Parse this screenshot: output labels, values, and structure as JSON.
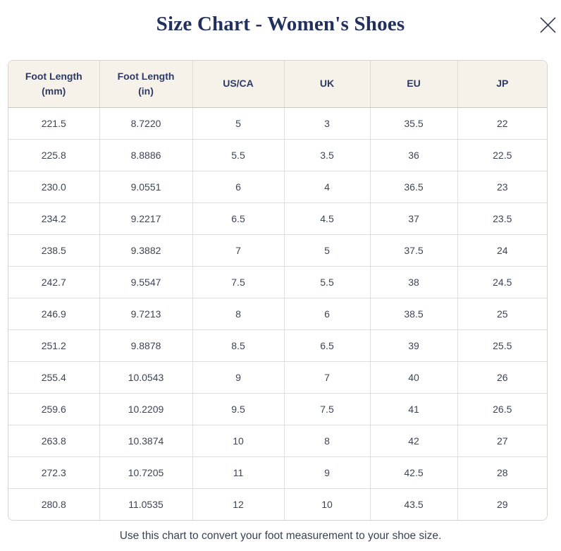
{
  "modal": {
    "title": "Size Chart - Women's Shoes",
    "footer_note": "Use this chart to convert your foot measurement to your shoe size."
  },
  "icons": {
    "close_icon": "✕"
  },
  "colors": {
    "title_text": "#22305e",
    "header_bg": "#f7f2e9",
    "header_text": "#2d3a66",
    "cell_text": "#3d4455",
    "border": "#dedede",
    "close_icon": "#3a4158"
  },
  "table": {
    "headers": [
      "Foot Length\n(mm)",
      "Foot Length\n(in)",
      "US/CA",
      "UK",
      "EU",
      "JP"
    ],
    "rows": [
      [
        "221.5",
        "8.7220",
        "5",
        "3",
        "35.5",
        "22"
      ],
      [
        "225.8",
        "8.8886",
        "5.5",
        "3.5",
        "36",
        "22.5"
      ],
      [
        "230.0",
        "9.0551",
        "6",
        "4",
        "36.5",
        "23"
      ],
      [
        "234.2",
        "9.2217",
        "6.5",
        "4.5",
        "37",
        "23.5"
      ],
      [
        "238.5",
        "9.3882",
        "7",
        "5",
        "37.5",
        "24"
      ],
      [
        "242.7",
        "9.5547",
        "7.5",
        "5.5",
        "38",
        "24.5"
      ],
      [
        "246.9",
        "9.7213",
        "8",
        "6",
        "38.5",
        "25"
      ],
      [
        "251.2",
        "9.8878",
        "8.5",
        "6.5",
        "39",
        "25.5"
      ],
      [
        "255.4",
        "10.0543",
        "9",
        "7",
        "40",
        "26"
      ],
      [
        "259.6",
        "10.2209",
        "9.5",
        "7.5",
        "41",
        "26.5"
      ],
      [
        "263.8",
        "10.3874",
        "10",
        "8",
        "42",
        "27"
      ],
      [
        "272.3",
        "10.7205",
        "11",
        "9",
        "42.5",
        "28"
      ],
      [
        "280.8",
        "11.0535",
        "12",
        "10",
        "43.5",
        "29"
      ]
    ]
  }
}
